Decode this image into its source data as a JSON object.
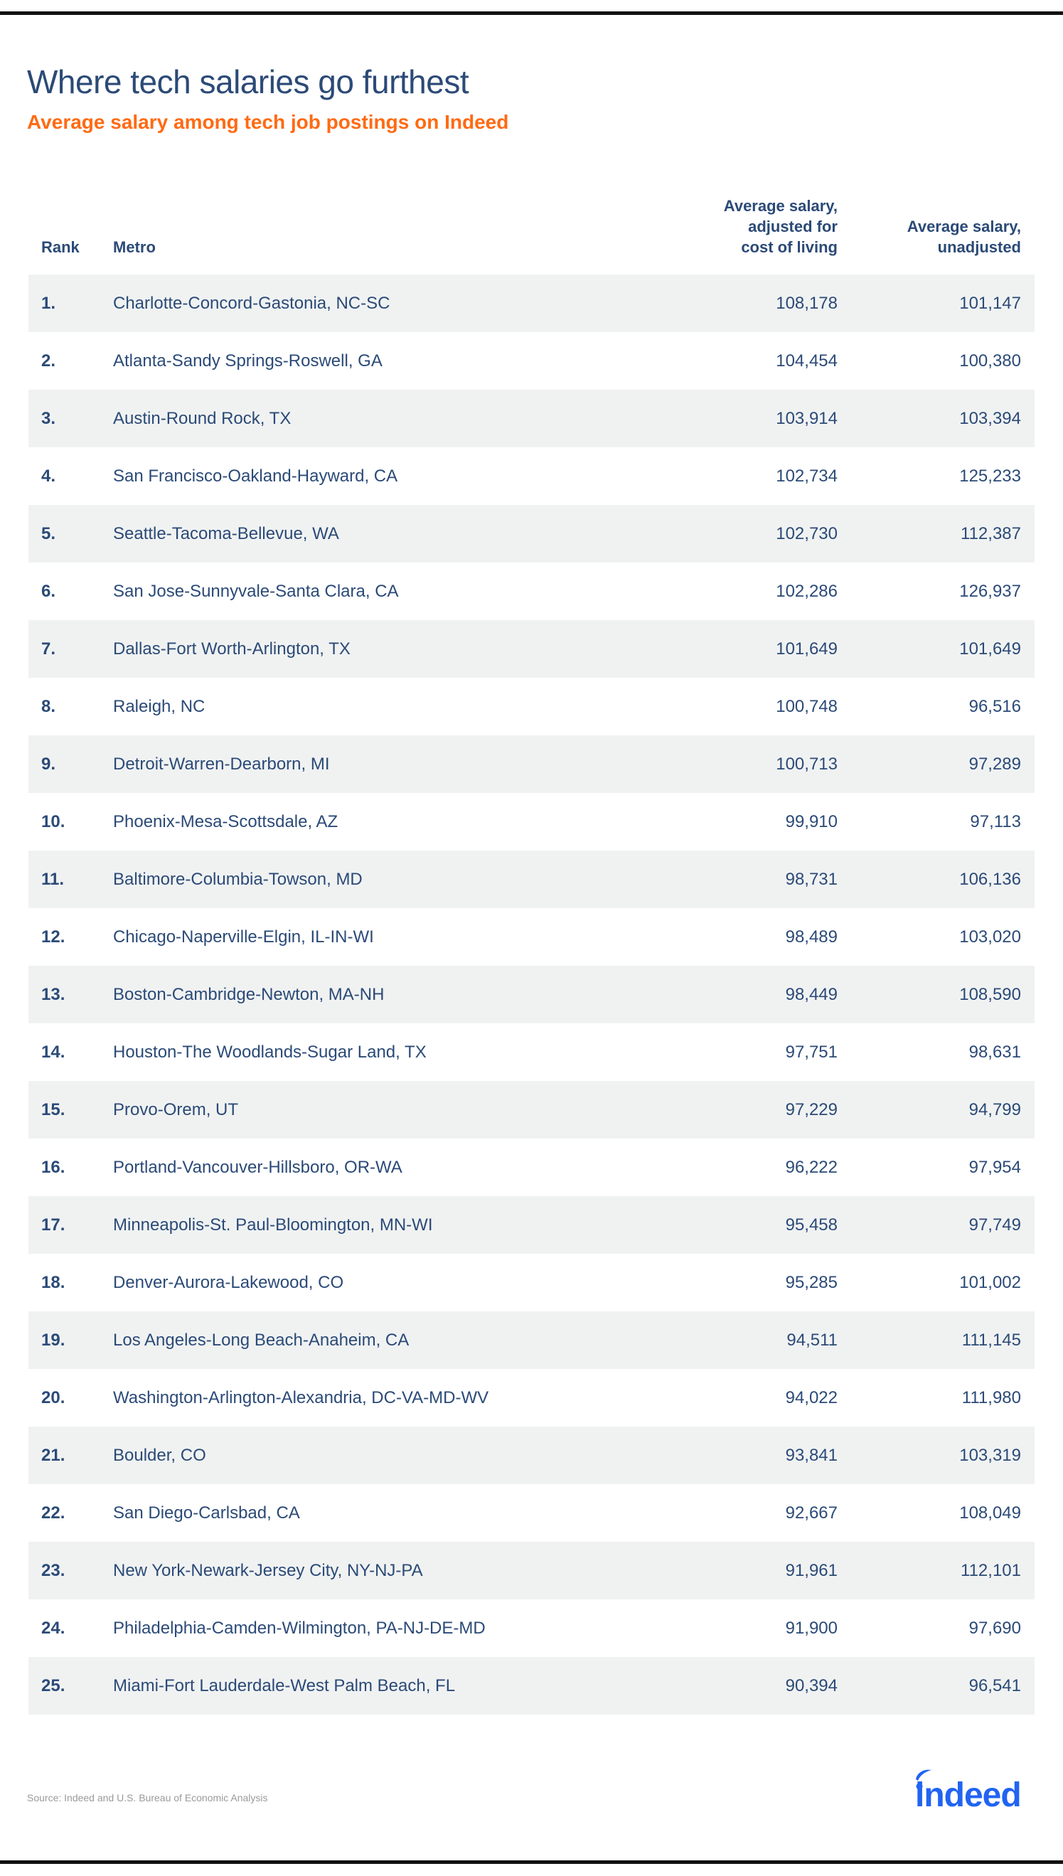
{
  "header": {
    "title": "Where tech salaries go furthest",
    "subtitle": "Average salary among tech job postings on Indeed"
  },
  "table": {
    "columns": {
      "rank": "Rank",
      "metro": "Metro",
      "adjusted": "Average salary,\nadjusted for\ncost of living",
      "unadjusted": "Average salary,\nunadjusted"
    },
    "rows": [
      {
        "rank": "1.",
        "metro": "Charlotte-Concord-Gastonia, NC-SC",
        "adjusted": "108,178",
        "unadjusted": "101,147"
      },
      {
        "rank": "2.",
        "metro": "Atlanta-Sandy Springs-Roswell, GA",
        "adjusted": "104,454",
        "unadjusted": "100,380"
      },
      {
        "rank": "3.",
        "metro": "Austin-Round Rock, TX",
        "adjusted": "103,914",
        "unadjusted": "103,394"
      },
      {
        "rank": "4.",
        "metro": "San Francisco-Oakland-Hayward, CA",
        "adjusted": "102,734",
        "unadjusted": "125,233"
      },
      {
        "rank": "5.",
        "metro": "Seattle-Tacoma-Bellevue, WA",
        "adjusted": "102,730",
        "unadjusted": "112,387"
      },
      {
        "rank": "6.",
        "metro": "San Jose-Sunnyvale-Santa Clara, CA",
        "adjusted": "102,286",
        "unadjusted": "126,937"
      },
      {
        "rank": "7.",
        "metro": "Dallas-Fort Worth-Arlington, TX",
        "adjusted": "101,649",
        "unadjusted": "101,649"
      },
      {
        "rank": "8.",
        "metro": "Raleigh, NC",
        "adjusted": "100,748",
        "unadjusted": "96,516"
      },
      {
        "rank": "9.",
        "metro": "Detroit-Warren-Dearborn, MI",
        "adjusted": "100,713",
        "unadjusted": "97,289"
      },
      {
        "rank": "10.",
        "metro": "Phoenix-Mesa-Scottsdale, AZ",
        "adjusted": "99,910",
        "unadjusted": "97,113"
      },
      {
        "rank": "11.",
        "metro": "Baltimore-Columbia-Towson, MD",
        "adjusted": "98,731",
        "unadjusted": "106,136"
      },
      {
        "rank": "12.",
        "metro": "Chicago-Naperville-Elgin, IL-IN-WI",
        "adjusted": "98,489",
        "unadjusted": "103,020"
      },
      {
        "rank": "13.",
        "metro": "Boston-Cambridge-Newton, MA-NH",
        "adjusted": "98,449",
        "unadjusted": "108,590"
      },
      {
        "rank": "14.",
        "metro": "Houston-The Woodlands-Sugar Land, TX",
        "adjusted": "97,751",
        "unadjusted": "98,631"
      },
      {
        "rank": "15.",
        "metro": "Provo-Orem, UT",
        "adjusted": "97,229",
        "unadjusted": "94,799"
      },
      {
        "rank": "16.",
        "metro": "Portland-Vancouver-Hillsboro, OR-WA",
        "adjusted": "96,222",
        "unadjusted": "97,954"
      },
      {
        "rank": "17.",
        "metro": "Minneapolis-St. Paul-Bloomington, MN-WI",
        "adjusted": "95,458",
        "unadjusted": "97,749"
      },
      {
        "rank": "18.",
        "metro": "Denver-Aurora-Lakewood, CO",
        "adjusted": "95,285",
        "unadjusted": "101,002"
      },
      {
        "rank": "19.",
        "metro": "Los Angeles-Long Beach-Anaheim, CA",
        "adjusted": "94,511",
        "unadjusted": "111,145"
      },
      {
        "rank": "20.",
        "metro": "Washington-Arlington-Alexandria, DC-VA-MD-WV",
        "adjusted": "94,022",
        "unadjusted": "111,980"
      },
      {
        "rank": "21.",
        "metro": "Boulder, CO",
        "adjusted": "93,841",
        "unadjusted": "103,319"
      },
      {
        "rank": "22.",
        "metro": "San Diego-Carlsbad, CA",
        "adjusted": "92,667",
        "unadjusted": "108,049"
      },
      {
        "rank": "23.",
        "metro": "New York-Newark-Jersey City, NY-NJ-PA",
        "adjusted": "91,961",
        "unadjusted": "112,101"
      },
      {
        "rank": "24.",
        "metro": "Philadelphia-Camden-Wilmington, PA-NJ-DE-MD",
        "adjusted": "91,900",
        "unadjusted": "97,690"
      },
      {
        "rank": "25.",
        "metro": "Miami-Fort Lauderdale-West Palm Beach, FL",
        "adjusted": "90,394",
        "unadjusted": "96,541"
      }
    ]
  },
  "footer": {
    "source": "Source: Indeed and U.S. Bureau of Economic Analysis",
    "logo_text": "indeed",
    "logo_icon": "indeed-logo-icon"
  },
  "colors": {
    "title": "#2b4a77",
    "subtitle_accent": "#ff6a13",
    "row_shade": "#f0f2f2",
    "logo_blue": "#2164f3",
    "rule": "#111111",
    "source_text": "#9a9a9a"
  },
  "chart_data": {
    "type": "table",
    "title": "Where tech salaries go furthest",
    "subtitle": "Average salary among tech job postings on Indeed",
    "columns": [
      "Rank",
      "Metro",
      "Average salary, adjusted for cost of living",
      "Average salary, unadjusted"
    ],
    "categories": [
      "Charlotte-Concord-Gastonia, NC-SC",
      "Atlanta-Sandy Springs-Roswell, GA",
      "Austin-Round Rock, TX",
      "San Francisco-Oakland-Hayward, CA",
      "Seattle-Tacoma-Bellevue, WA",
      "San Jose-Sunnyvale-Santa Clara, CA",
      "Dallas-Fort Worth-Arlington, TX",
      "Raleigh, NC",
      "Detroit-Warren-Dearborn, MI",
      "Phoenix-Mesa-Scottsdale, AZ",
      "Baltimore-Columbia-Towson, MD",
      "Chicago-Naperville-Elgin, IL-IN-WI",
      "Boston-Cambridge-Newton, MA-NH",
      "Houston-The Woodlands-Sugar Land, TX",
      "Provo-Orem, UT",
      "Portland-Vancouver-Hillsboro, OR-WA",
      "Minneapolis-St. Paul-Bloomington, MN-WI",
      "Denver-Aurora-Lakewood, CO",
      "Los Angeles-Long Beach-Anaheim, CA",
      "Washington-Arlington-Alexandria, DC-VA-MD-WV",
      "Boulder, CO",
      "San Diego-Carlsbad, CA",
      "New York-Newark-Jersey City, NY-NJ-PA",
      "Philadelphia-Camden-Wilmington, PA-NJ-DE-MD",
      "Miami-Fort Lauderdale-West Palm Beach, FL"
    ],
    "series": [
      {
        "name": "Average salary, adjusted for cost of living",
        "values": [
          108178,
          104454,
          103914,
          102734,
          102730,
          102286,
          101649,
          100748,
          100713,
          99910,
          98731,
          98489,
          98449,
          97751,
          97229,
          96222,
          95458,
          95285,
          94511,
          94022,
          93841,
          92667,
          91961,
          91900,
          90394
        ]
      },
      {
        "name": "Average salary, unadjusted",
        "values": [
          101147,
          100380,
          103394,
          125233,
          112387,
          126937,
          101649,
          96516,
          97289,
          97113,
          106136,
          103020,
          108590,
          98631,
          94799,
          97954,
          97749,
          101002,
          111145,
          111980,
          103319,
          108049,
          112101,
          97690,
          96541
        ]
      }
    ],
    "source": "Source: Indeed and U.S. Bureau of Economic Analysis"
  }
}
